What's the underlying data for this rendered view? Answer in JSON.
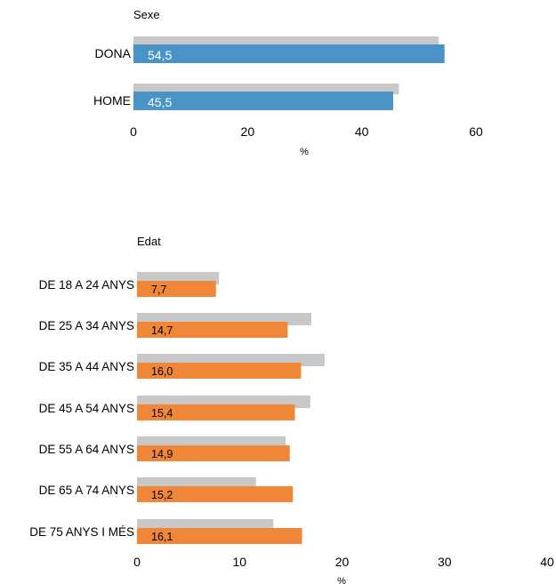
{
  "chart_data": [
    {
      "type": "bar",
      "orientation": "horizontal",
      "title": "Sexe",
      "xlabel": "%",
      "categories": [
        "DONA",
        "HOME"
      ],
      "xlim": [
        0,
        60
      ],
      "xticks": [
        "0",
        "20",
        "40",
        "60"
      ],
      "series": [
        {
          "values": [
            53.5,
            46.5
          ],
          "color": "#c8c8c8"
        },
        {
          "values": [
            54.5,
            45.5
          ],
          "color": "#4a93c6",
          "labels": [
            "54,5",
            "45,5"
          ]
        }
      ],
      "grid": false
    },
    {
      "type": "bar",
      "orientation": "horizontal",
      "title": "Edat",
      "xlabel": "%",
      "categories": [
        "DE 18 A 24 ANYS",
        "DE 25 A 34 ANYS",
        "DE 35 A 44 ANYS",
        "DE 45 A 54 ANYS",
        "DE 55 A 64 ANYS",
        "DE 65 A 74 ANYS",
        "DE 75 ANYS I MÉS"
      ],
      "xlim": [
        0,
        40
      ],
      "xticks": [
        "0",
        "10",
        "20",
        "30",
        "40"
      ],
      "series": [
        {
          "values": [
            8.0,
            17.0,
            18.3,
            16.9,
            14.5,
            11.6,
            13.3
          ],
          "color": "#c8c8c8"
        },
        {
          "values": [
            7.7,
            14.7,
            16.0,
            15.4,
            14.9,
            15.2,
            16.1
          ],
          "color": "#f08638",
          "labels": [
            "7,7",
            "14,7",
            "16,0",
            "15,4",
            "14,9",
            "15,2",
            "16,1"
          ]
        }
      ],
      "grid": false
    }
  ]
}
